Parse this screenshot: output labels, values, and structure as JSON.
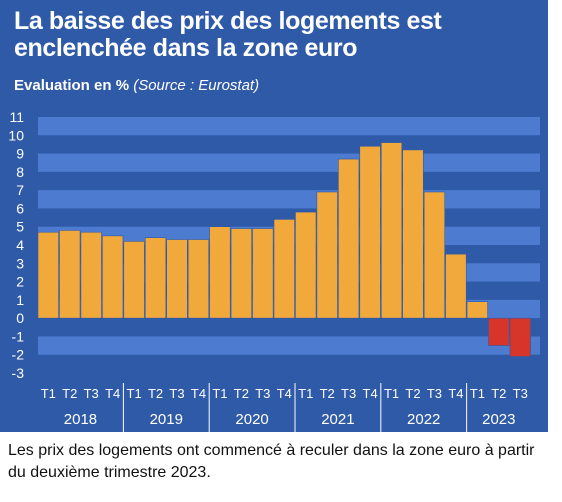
{
  "title": "La baisse des prix des logements est enclenchée dans la zone euro",
  "subtitle": {
    "lead": "Evaluation en %",
    "source": "(Source : Eurostat)"
  },
  "caption": "Les prix des logements ont commencé à reculer dans la zone euro à partir du deuxième trimestre 2023.",
  "colors": {
    "panel": "#2f5aa8",
    "band": "#4d7bd0",
    "positive_bar": "#f2a93b",
    "negative_bar": "#d8352a"
  },
  "chart_data": {
    "type": "bar",
    "ylim": [
      -3,
      11
    ],
    "yticks": [
      11,
      10,
      9,
      8,
      7,
      6,
      5,
      4,
      3,
      2,
      1,
      0,
      -1,
      -2,
      -3
    ],
    "quarter_labels": [
      "T1",
      "T2",
      "T3",
      "T4"
    ],
    "years": [
      {
        "label": "2018",
        "quarters": [
          "T1",
          "T2",
          "T3",
          "T4"
        ]
      },
      {
        "label": "2019",
        "quarters": [
          "T1",
          "T2",
          "T3",
          "T4"
        ]
      },
      {
        "label": "2020",
        "quarters": [
          "T1",
          "T2",
          "T3",
          "T4"
        ]
      },
      {
        "label": "2021",
        "quarters": [
          "T1",
          "T2",
          "T3",
          "T4"
        ]
      },
      {
        "label": "2022",
        "quarters": [
          "T1",
          "T2",
          "T3",
          "T4"
        ]
      },
      {
        "label": "2023",
        "quarters": [
          "T1",
          "T2",
          "T3"
        ]
      }
    ],
    "values": [
      4.7,
      4.8,
      4.7,
      4.5,
      4.2,
      4.4,
      4.3,
      4.3,
      5.0,
      4.9,
      4.9,
      5.4,
      5.8,
      6.9,
      8.7,
      9.4,
      9.6,
      9.2,
      6.9,
      3.5,
      0.9,
      -1.5,
      -2.1
    ],
    "grid": "horizontal bands"
  }
}
